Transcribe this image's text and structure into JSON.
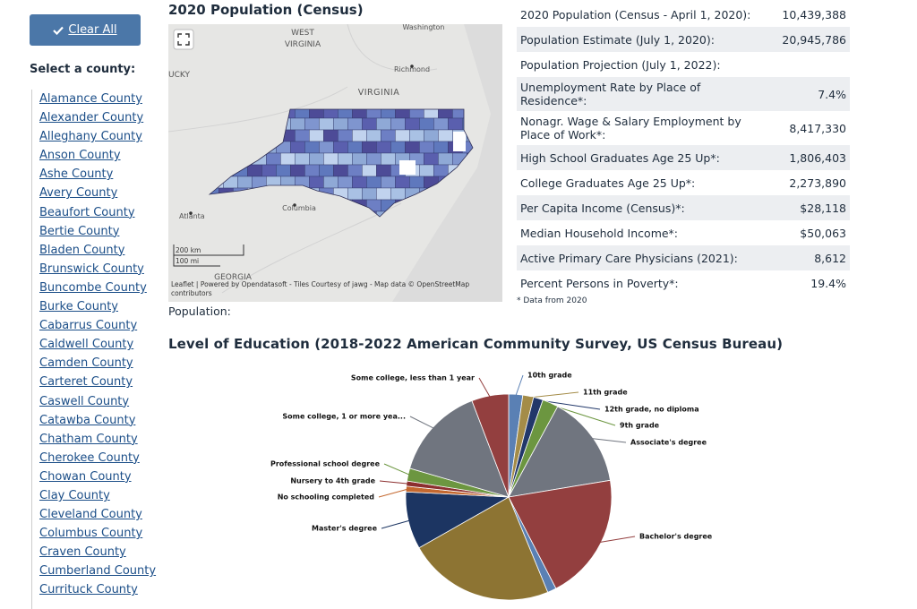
{
  "sidebar": {
    "button": "Clear All",
    "prompt": "Select a county:",
    "counties": [
      "Alamance County",
      "Alexander County",
      "Alleghany County",
      "Anson County",
      "Ashe County",
      "Avery County",
      "Beaufort County",
      "Bertie County",
      "Bladen County",
      "Brunswick County",
      "Buncombe County",
      "Burke County",
      "Cabarrus County",
      "Caldwell County",
      "Camden County",
      "Carteret County",
      "Caswell County",
      "Catawba County",
      "Chatham County",
      "Cherokee County",
      "Chowan County",
      "Clay County",
      "Cleveland County",
      "Columbus County",
      "Craven County",
      "Cumberland County",
      "Currituck County"
    ]
  },
  "map": {
    "title": "2020 Population (Census)",
    "labels": [
      "WEST",
      "VIRGINIA",
      "Washington",
      "UCKY",
      "Richmond",
      "VIRGINIA",
      "Atlanta",
      "Columbia",
      "GEORGIA"
    ],
    "scale": [
      "200 km",
      "100 mi"
    ],
    "attribution": "Leaflet | Powered by Opendatasoft - Tiles Courtesy of jawg - Map data © OpenStreetMap contributors",
    "legend_label": "Population:"
  },
  "stats": {
    "rows": [
      {
        "label": "2020 Population (Census - April 1, 2020):",
        "value": "10,439,388"
      },
      {
        "label": "Population Estimate (July 1, 2020):",
        "value": "20,945,786"
      },
      {
        "label": "Population Projection (July 1, 2022):"
      },
      {
        "label": "Unemployment Rate by Place of Residence*:",
        "value": "7.4%"
      },
      {
        "label": "Nonagr. Wage & Salary Employment by Place of Work*:",
        "value": "8,417,330"
      },
      {
        "label": "High School Graduates Age 25 Up*:",
        "value": "1,806,403"
      },
      {
        "label": "College Graduates Age 25 Up*:",
        "value": "2,273,890"
      },
      {
        "label": "Per Capita Income (Census)*:",
        "value": "$28,118"
      },
      {
        "label": "Median Household Income*:",
        "value": "$50,063"
      },
      {
        "label": "Active Primary Care Physicians (2021):",
        "value": "8,612"
      },
      {
        "label": "Percent Persons in Poverty*:",
        "value": "19.4%"
      }
    ],
    "footnote": "* Data from 2020"
  },
  "chart_data": {
    "type": "pie",
    "title": "Level of Education (2018-2022 American Community Survey, US Census Bureau)",
    "categories": [
      "10th grade",
      "11th grade",
      "12th grade, no diploma",
      "9th grade",
      "Associate's degree",
      "Bachelor's degree",
      null,
      null,
      "Master's degree",
      "No schooling completed",
      "Nursery to 4th grade",
      "Professional school degree",
      "Some college, 1 or more yea...",
      "Some college, less than 1 year"
    ],
    "values": [
      2.2,
      1.7,
      1.5,
      2.5,
      14.5,
      20,
      1.4,
      23,
      9,
      0.9,
      0.8,
      2,
      14.7,
      5.8
    ],
    "colors": [
      "#5a80b4",
      "#a48c48",
      "#22386a",
      "#6c9640",
      "#70757f",
      "#933f3f",
      "#5a80b4",
      "#8d7433",
      "#1c3562",
      "#c4682f",
      "#8c2f2f",
      "#6c9640",
      "#70757f",
      "#933f3f"
    ]
  }
}
